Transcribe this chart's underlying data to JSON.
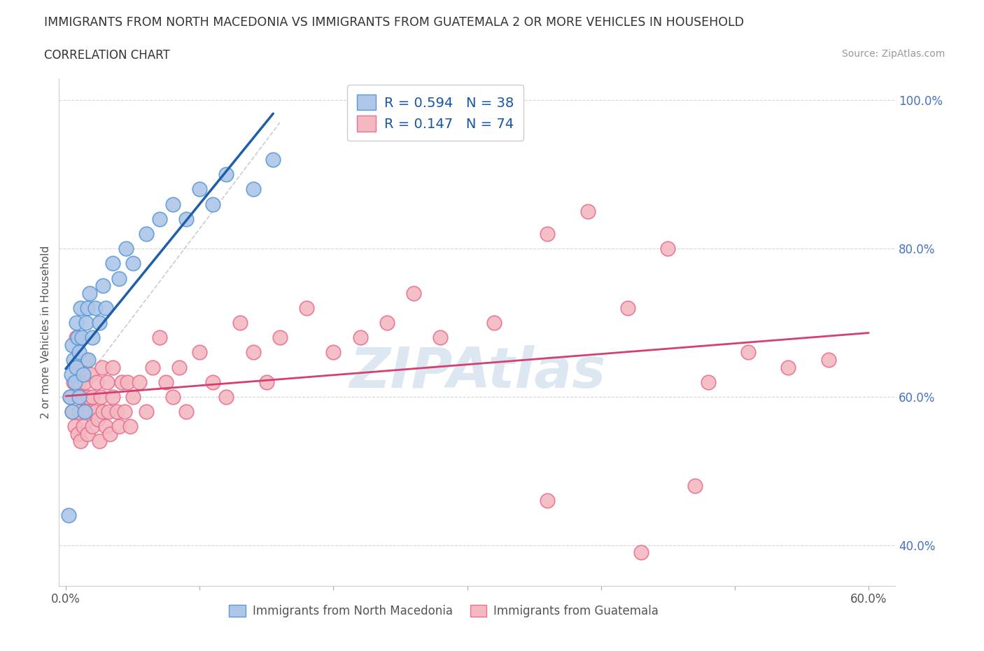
{
  "title": "IMMIGRANTS FROM NORTH MACEDONIA VS IMMIGRANTS FROM GUATEMALA 2 OR MORE VEHICLES IN HOUSEHOLD",
  "subtitle": "CORRELATION CHART",
  "source": "Source: ZipAtlas.com",
  "ylabel": "2 or more Vehicles in Household",
  "xlim": [
    -0.005,
    0.62
  ],
  "ylim": [
    0.345,
    1.03
  ],
  "x_ticks": [
    0.0,
    0.1,
    0.2,
    0.3,
    0.4,
    0.5,
    0.6
  ],
  "x_tick_labels": [
    "0.0%",
    "",
    "",
    "",
    "",
    "",
    "60.0%"
  ],
  "y_ticks": [
    0.4,
    0.6,
    0.8,
    1.0
  ],
  "y_tick_labels": [
    "40.0%",
    "60.0%",
    "80.0%",
    "100.0%"
  ],
  "blue_R": 0.594,
  "blue_N": 38,
  "pink_R": 0.147,
  "pink_N": 74,
  "blue_color": "#aec6e8",
  "blue_edge": "#5b9bd5",
  "pink_color": "#f4b8c1",
  "pink_edge": "#e87090",
  "blue_line_color": "#1f5faa",
  "pink_line_color": "#d44070",
  "legend_R_color": "#1555aa",
  "watermark": "ZIPAtlas",
  "watermark_color": "#c0d4e8",
  "blue_x": [
    0.002,
    0.003,
    0.004,
    0.005,
    0.005,
    0.006,
    0.007,
    0.008,
    0.008,
    0.009,
    0.01,
    0.01,
    0.011,
    0.012,
    0.013,
    0.014,
    0.015,
    0.016,
    0.017,
    0.018,
    0.02,
    0.022,
    0.025,
    0.028,
    0.03,
    0.035,
    0.04,
    0.045,
    0.05,
    0.06,
    0.07,
    0.08,
    0.09,
    0.1,
    0.11,
    0.12,
    0.14,
    0.155
  ],
  "blue_y": [
    0.44,
    0.6,
    0.63,
    0.58,
    0.67,
    0.65,
    0.62,
    0.64,
    0.7,
    0.68,
    0.6,
    0.66,
    0.72,
    0.68,
    0.63,
    0.58,
    0.7,
    0.72,
    0.65,
    0.74,
    0.68,
    0.72,
    0.7,
    0.75,
    0.72,
    0.78,
    0.76,
    0.8,
    0.78,
    0.82,
    0.84,
    0.86,
    0.84,
    0.88,
    0.86,
    0.9,
    0.88,
    0.92
  ],
  "pink_x": [
    0.003,
    0.005,
    0.006,
    0.007,
    0.008,
    0.008,
    0.009,
    0.01,
    0.01,
    0.011,
    0.012,
    0.013,
    0.014,
    0.015,
    0.015,
    0.016,
    0.017,
    0.018,
    0.019,
    0.02,
    0.02,
    0.022,
    0.023,
    0.024,
    0.025,
    0.026,
    0.027,
    0.028,
    0.03,
    0.031,
    0.032,
    0.033,
    0.035,
    0.035,
    0.038,
    0.04,
    0.042,
    0.044,
    0.046,
    0.048,
    0.05,
    0.055,
    0.06,
    0.065,
    0.07,
    0.075,
    0.08,
    0.085,
    0.09,
    0.1,
    0.11,
    0.12,
    0.13,
    0.14,
    0.15,
    0.16,
    0.18,
    0.2,
    0.22,
    0.24,
    0.26,
    0.28,
    0.32,
    0.36,
    0.39,
    0.42,
    0.45,
    0.48,
    0.51,
    0.54,
    0.57,
    0.47,
    0.36,
    0.43
  ],
  "pink_y": [
    0.6,
    0.58,
    0.62,
    0.56,
    0.64,
    0.68,
    0.55,
    0.58,
    0.62,
    0.54,
    0.6,
    0.56,
    0.62,
    0.58,
    0.65,
    0.55,
    0.6,
    0.58,
    0.63,
    0.56,
    0.6,
    0.58,
    0.62,
    0.57,
    0.54,
    0.6,
    0.64,
    0.58,
    0.56,
    0.62,
    0.58,
    0.55,
    0.6,
    0.64,
    0.58,
    0.56,
    0.62,
    0.58,
    0.62,
    0.56,
    0.6,
    0.62,
    0.58,
    0.64,
    0.68,
    0.62,
    0.6,
    0.64,
    0.58,
    0.66,
    0.62,
    0.6,
    0.7,
    0.66,
    0.62,
    0.68,
    0.72,
    0.66,
    0.68,
    0.7,
    0.74,
    0.68,
    0.7,
    0.82,
    0.85,
    0.72,
    0.8,
    0.62,
    0.66,
    0.64,
    0.65,
    0.48,
    0.46,
    0.39
  ]
}
